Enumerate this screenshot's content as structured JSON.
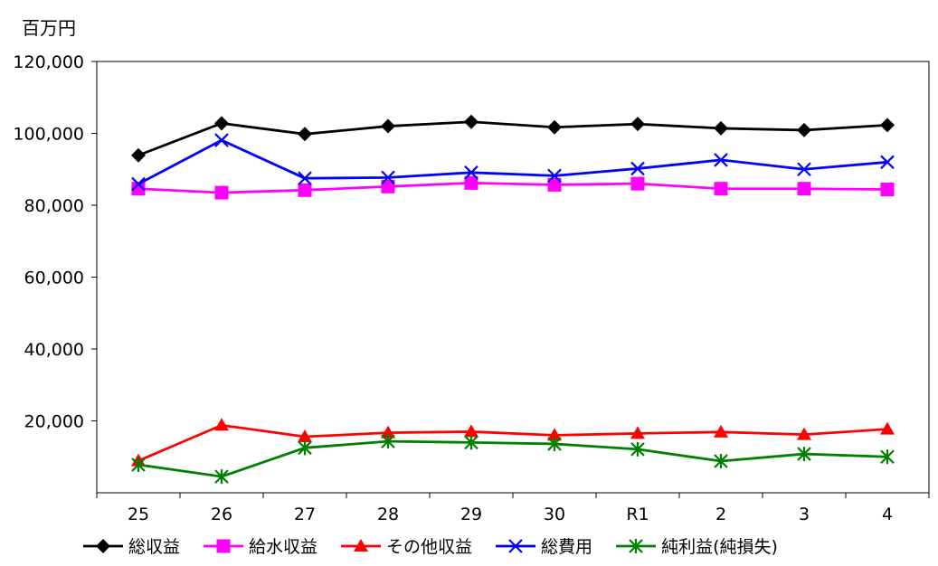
{
  "chart_data": {
    "type": "line",
    "unit_label": "百万円",
    "categories": [
      "25",
      "26",
      "27",
      "28",
      "29",
      "30",
      "R1",
      "2",
      "3",
      "4"
    ],
    "ylim": [
      0,
      120000
    ],
    "y_ticks": [
      {
        "value": 20000,
        "label": "20,000"
      },
      {
        "value": 40000,
        "label": "40,000"
      },
      {
        "value": 60000,
        "label": "60,000"
      },
      {
        "value": 80000,
        "label": "80,000"
      },
      {
        "value": 100000,
        "label": "100,000"
      },
      {
        "value": 120000,
        "label": "120,000"
      }
    ],
    "grid": false,
    "legend_position": "bottom",
    "series": [
      {
        "name": "総収益",
        "color": "#000000",
        "marker": "diamond",
        "values": [
          93900,
          102800,
          99800,
          102000,
          103200,
          101700,
          102600,
          101400,
          100900,
          102300
        ]
      },
      {
        "name": "給水収益",
        "color": "#ff00ff",
        "marker": "square",
        "values": [
          84600,
          83500,
          84200,
          85200,
          86200,
          85700,
          86000,
          84600,
          84600,
          84400
        ]
      },
      {
        "name": "その他収益",
        "color": "#ff0000",
        "marker": "triangle",
        "values": [
          8900,
          18800,
          15600,
          16700,
          17000,
          16000,
          16500,
          16900,
          16200,
          17700
        ]
      },
      {
        "name": "総費用",
        "color": "#0000ff",
        "marker": "x",
        "values": [
          85900,
          98100,
          87500,
          87700,
          89100,
          88200,
          90200,
          92600,
          90000,
          92000
        ]
      },
      {
        "name": "純利益(純損失)",
        "color": "#008000",
        "marker": "star",
        "values": [
          7800,
          4500,
          12500,
          14300,
          14000,
          13600,
          12100,
          8800,
          10800,
          10000
        ]
      }
    ]
  }
}
